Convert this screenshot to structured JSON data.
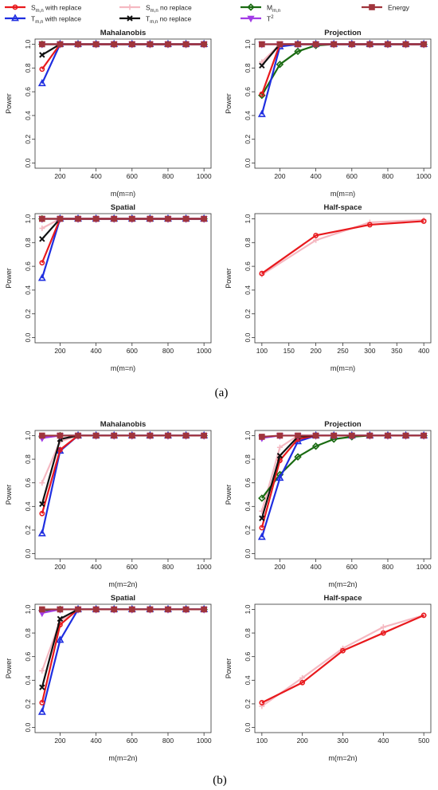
{
  "legend": {
    "placement": "top",
    "entries": [
      {
        "label": "S",
        "sub": "m,n",
        "rest": " with replace",
        "color": "#e8191d",
        "marker": "circle"
      },
      {
        "label": "S",
        "sub": "m,n",
        "rest": " no replace",
        "color": "#f5b8c1",
        "marker": "plus"
      },
      {
        "label": "M",
        "sub": "m,n",
        "rest": "",
        "color": "#1a6b12",
        "marker": "diamond"
      },
      {
        "label": "Energy",
        "sub": "",
        "rest": "",
        "color": "#a0343c",
        "marker": "square"
      },
      {
        "label": "T",
        "sub": "m,n",
        "rest": " with replace",
        "color": "#1f2ee0",
        "marker": "triangle"
      },
      {
        "label": "T",
        "sub": "m,n",
        "rest": " no replace",
        "color": "#111111",
        "marker": "x"
      },
      {
        "label": "T",
        "sup": "2",
        "rest": "",
        "color": "#a23ce6",
        "marker": "invtriangle"
      }
    ]
  },
  "captions": {
    "a": "(a)",
    "b": "(b)"
  },
  "chart_data": [
    {
      "type": "line",
      "title": "Mahalanobis",
      "xlabel": "m(m=n)",
      "ylabel": "Power",
      "xlim": [
        100,
        1000
      ],
      "ylim": [
        0,
        1
      ],
      "xticks": [
        200,
        400,
        600,
        800,
        1000
      ],
      "yticks": [
        0.0,
        0.2,
        0.4,
        0.6,
        0.8,
        1.0
      ],
      "x": [
        100,
        200,
        300,
        400,
        500,
        600,
        700,
        800,
        900,
        1000
      ],
      "series": [
        {
          "name": "S with replace",
          "values": [
            0.79,
            1,
            1,
            1,
            1,
            1,
            1,
            1,
            1,
            1
          ]
        },
        {
          "name": "S no replace",
          "values": [
            1,
            1,
            1,
            1,
            1,
            1,
            1,
            1,
            1,
            1
          ]
        },
        {
          "name": "M",
          "values": [
            1,
            1,
            1,
            1,
            1,
            1,
            1,
            1,
            1,
            1
          ]
        },
        {
          "name": "Energy",
          "values": [
            1,
            1,
            1,
            1,
            1,
            1,
            1,
            1,
            1,
            1
          ]
        },
        {
          "name": "T with replace",
          "values": [
            0.67,
            1,
            1,
            1,
            1,
            1,
            1,
            1,
            1,
            1
          ]
        },
        {
          "name": "T no replace",
          "values": [
            0.91,
            1,
            1,
            1,
            1,
            1,
            1,
            1,
            1,
            1
          ]
        },
        {
          "name": "T2",
          "values": [
            1,
            1,
            1,
            1,
            1,
            1,
            1,
            1,
            1,
            1
          ]
        }
      ]
    },
    {
      "type": "line",
      "title": "Projection",
      "xlabel": "m(m=n)",
      "ylabel": "Power",
      "xlim": [
        100,
        1000
      ],
      "ylim": [
        0,
        1
      ],
      "xticks": [
        200,
        400,
        600,
        800,
        1000
      ],
      "yticks": [
        0.0,
        0.2,
        0.4,
        0.6,
        0.8,
        1.0
      ],
      "x": [
        100,
        200,
        300,
        400,
        500,
        600,
        700,
        800,
        900,
        1000
      ],
      "series": [
        {
          "name": "S with replace",
          "values": [
            0.58,
            1,
            1,
            1,
            1,
            1,
            1,
            1,
            1,
            1
          ]
        },
        {
          "name": "S no replace",
          "values": [
            0.85,
            1,
            1,
            1,
            1,
            1,
            1,
            1,
            1,
            1
          ]
        },
        {
          "name": "M",
          "values": [
            0.57,
            0.83,
            0.94,
            0.99,
            1,
            1,
            1,
            1,
            1,
            1
          ]
        },
        {
          "name": "Energy",
          "values": [
            1,
            1,
            1,
            1,
            1,
            1,
            1,
            1,
            1,
            1
          ]
        },
        {
          "name": "T with replace",
          "values": [
            0.41,
            0.98,
            1,
            1,
            1,
            1,
            1,
            1,
            1,
            1
          ]
        },
        {
          "name": "T no replace",
          "values": [
            0.82,
            1,
            1,
            1,
            1,
            1,
            1,
            1,
            1,
            1
          ]
        },
        {
          "name": "T2",
          "values": [
            1,
            1,
            1,
            1,
            1,
            1,
            1,
            1,
            1,
            1
          ]
        }
      ]
    },
    {
      "type": "line",
      "title": "Spatial",
      "xlabel": "m(m=n)",
      "ylabel": "Power",
      "xlim": [
        100,
        1000
      ],
      "ylim": [
        0,
        1
      ],
      "xticks": [
        200,
        400,
        600,
        800,
        1000
      ],
      "yticks": [
        0.0,
        0.2,
        0.4,
        0.6,
        0.8,
        1.0
      ],
      "x": [
        100,
        200,
        300,
        400,
        500,
        600,
        700,
        800,
        900,
        1000
      ],
      "series": [
        {
          "name": "S with replace",
          "values": [
            0.63,
            1,
            1,
            1,
            1,
            1,
            1,
            1,
            1,
            1
          ]
        },
        {
          "name": "S no replace",
          "values": [
            0.92,
            1,
            1,
            1,
            1,
            1,
            1,
            1,
            1,
            1
          ]
        },
        {
          "name": "M",
          "values": [
            1,
            1,
            1,
            1,
            1,
            1,
            1,
            1,
            1,
            1
          ]
        },
        {
          "name": "Energy",
          "values": [
            1,
            1,
            1,
            1,
            1,
            1,
            1,
            1,
            1,
            1
          ]
        },
        {
          "name": "T with replace",
          "values": [
            0.5,
            1,
            1,
            1,
            1,
            1,
            1,
            1,
            1,
            1
          ]
        },
        {
          "name": "T no replace",
          "values": [
            0.83,
            1,
            1,
            1,
            1,
            1,
            1,
            1,
            1,
            1
          ]
        },
        {
          "name": "T2",
          "values": [
            1,
            1,
            1,
            1,
            1,
            1,
            1,
            1,
            1,
            1
          ]
        }
      ]
    },
    {
      "type": "line",
      "title": "Half-space",
      "xlabel": "m(m=n)",
      "ylabel": "Power",
      "xlim": [
        100,
        400
      ],
      "ylim": [
        0,
        1
      ],
      "xticks": [
        100,
        150,
        200,
        250,
        300,
        350,
        400
      ],
      "yticks": [
        0.0,
        0.2,
        0.4,
        0.6,
        0.8,
        1.0
      ],
      "x": [
        100,
        200,
        300,
        400
      ],
      "series": [
        {
          "name": "S with replace",
          "values": [
            0.54,
            0.86,
            0.95,
            0.98
          ]
        },
        {
          "name": "S no replace",
          "values": [
            0.53,
            0.82,
            0.97,
            0.99
          ]
        }
      ]
    },
    {
      "type": "line",
      "title": "Mahalanobis",
      "xlabel": "m(m=2n)",
      "ylabel": "Power",
      "xlim": [
        100,
        1000
      ],
      "ylim": [
        0,
        1
      ],
      "xticks": [
        200,
        400,
        600,
        800,
        1000
      ],
      "yticks": [
        0.0,
        0.2,
        0.4,
        0.6,
        0.8,
        1.0
      ],
      "x": [
        100,
        200,
        300,
        400,
        500,
        600,
        700,
        800,
        900,
        1000
      ],
      "series": [
        {
          "name": "S with replace",
          "values": [
            0.34,
            0.88,
            1,
            1,
            1,
            1,
            1,
            1,
            1,
            1
          ]
        },
        {
          "name": "S no replace",
          "values": [
            0.6,
            0.95,
            1,
            1,
            1,
            1,
            1,
            1,
            1,
            1
          ]
        },
        {
          "name": "M",
          "values": [
            0.99,
            1,
            1,
            1,
            1,
            1,
            1,
            1,
            1,
            1
          ]
        },
        {
          "name": "Energy",
          "values": [
            1,
            1,
            1,
            1,
            1,
            1,
            1,
            1,
            1,
            1
          ]
        },
        {
          "name": "T with replace",
          "values": [
            0.17,
            0.87,
            1,
            1,
            1,
            1,
            1,
            1,
            1,
            1
          ]
        },
        {
          "name": "T no replace",
          "values": [
            0.42,
            0.97,
            1,
            1,
            1,
            1,
            1,
            1,
            1,
            1
          ]
        },
        {
          "name": "T2",
          "values": [
            0.98,
            1,
            1,
            1,
            1,
            1,
            1,
            1,
            1,
            1
          ]
        }
      ]
    },
    {
      "type": "line",
      "title": "Projection",
      "xlabel": "m(m=2n)",
      "ylabel": "Power",
      "xlim": [
        100,
        1000
      ],
      "ylim": [
        0,
        1
      ],
      "xticks": [
        200,
        400,
        600,
        800,
        1000
      ],
      "yticks": [
        0.0,
        0.2,
        0.4,
        0.6,
        0.8,
        1.0
      ],
      "x": [
        100,
        200,
        300,
        400,
        500,
        600,
        700,
        800,
        900,
        1000
      ],
      "series": [
        {
          "name": "S with replace",
          "values": [
            0.22,
            0.79,
            0.97,
            1,
            1,
            1,
            1,
            1,
            1,
            1
          ]
        },
        {
          "name": "S no replace",
          "values": [
            0.36,
            0.9,
            1,
            1,
            1,
            1,
            1,
            1,
            1,
            1
          ]
        },
        {
          "name": "M",
          "values": [
            0.47,
            0.67,
            0.82,
            0.91,
            0.97,
            0.99,
            1,
            1,
            1,
            1
          ]
        },
        {
          "name": "Energy",
          "values": [
            0.99,
            1,
            1,
            1,
            1,
            1,
            1,
            1,
            1,
            1
          ]
        },
        {
          "name": "T with replace",
          "values": [
            0.14,
            0.64,
            0.95,
            1,
            1,
            1,
            1,
            1,
            1,
            1
          ]
        },
        {
          "name": "T no replace",
          "values": [
            0.3,
            0.83,
            0.99,
            1,
            1,
            1,
            1,
            1,
            1,
            1
          ]
        },
        {
          "name": "T2",
          "values": [
            0.98,
            1,
            1,
            1,
            1,
            1,
            1,
            1,
            1,
            1
          ]
        }
      ]
    },
    {
      "type": "line",
      "title": "Spatial",
      "xlabel": "m(m=2n)",
      "ylabel": "Power",
      "xlim": [
        100,
        1000
      ],
      "ylim": [
        0,
        1
      ],
      "xticks": [
        200,
        400,
        600,
        800,
        1000
      ],
      "yticks": [
        0.0,
        0.2,
        0.4,
        0.6,
        0.8,
        1.0
      ],
      "x": [
        100,
        200,
        300,
        400,
        500,
        600,
        700,
        800,
        900,
        1000
      ],
      "series": [
        {
          "name": "S with replace",
          "values": [
            0.21,
            0.87,
            1,
            1,
            1,
            1,
            1,
            1,
            1,
            1
          ]
        },
        {
          "name": "S no replace",
          "values": [
            0.48,
            0.9,
            1,
            1,
            1,
            1,
            1,
            1,
            1,
            1
          ]
        },
        {
          "name": "M",
          "values": [
            0.99,
            1,
            1,
            1,
            1,
            1,
            1,
            1,
            1,
            1
          ]
        },
        {
          "name": "Energy",
          "values": [
            1,
            1,
            1,
            1,
            1,
            1,
            1,
            1,
            1,
            1
          ]
        },
        {
          "name": "T with replace",
          "values": [
            0.13,
            0.74,
            1,
            1,
            1,
            1,
            1,
            1,
            1,
            1
          ]
        },
        {
          "name": "T no replace",
          "values": [
            0.34,
            0.92,
            1,
            1,
            1,
            1,
            1,
            1,
            1,
            1
          ]
        },
        {
          "name": "T2",
          "values": [
            0.97,
            1,
            1,
            1,
            1,
            1,
            1,
            1,
            1,
            1
          ]
        }
      ]
    },
    {
      "type": "line",
      "title": "Half-space",
      "xlabel": "m(m=2n)",
      "ylabel": "Power",
      "xlim": [
        100,
        500
      ],
      "ylim": [
        0,
        1
      ],
      "xticks": [
        100,
        200,
        300,
        400,
        500
      ],
      "yticks": [
        0.0,
        0.2,
        0.4,
        0.6,
        0.8,
        1.0
      ],
      "x": [
        100,
        200,
        300,
        400,
        500
      ],
      "series": [
        {
          "name": "S with replace",
          "values": [
            0.21,
            0.38,
            0.65,
            0.8,
            0.95
          ]
        },
        {
          "name": "S no replace",
          "values": [
            0.18,
            0.42,
            0.67,
            0.85,
            0.95
          ]
        }
      ]
    }
  ]
}
